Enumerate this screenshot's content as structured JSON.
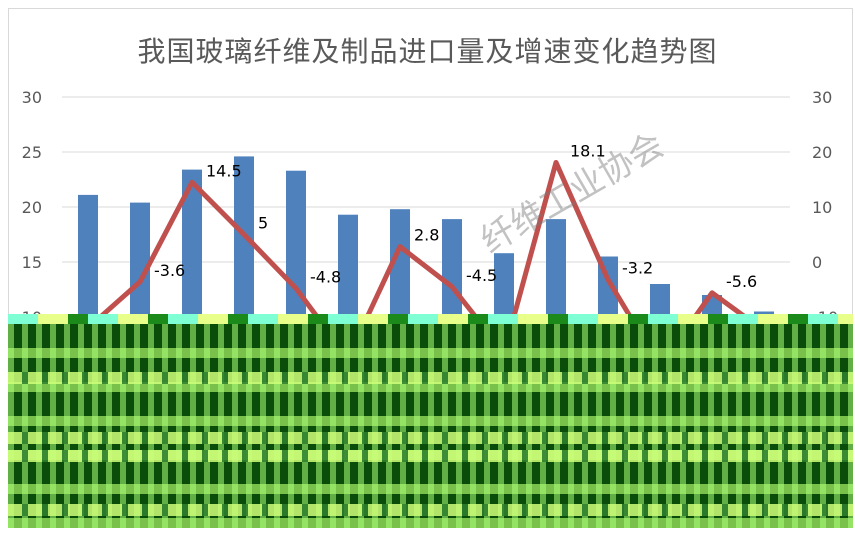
{
  "chart_data": {
    "type": "bar+line",
    "title": "我国玻璃纤维及制品进口量及增速变化趋势图",
    "left_axis": {
      "ticks": [
        "30",
        "25",
        "20",
        "15",
        "10"
      ],
      "ylim": [
        10,
        30
      ]
    },
    "right_axis": {
      "ticks": [
        "30",
        "20",
        "10",
        "0",
        "-10"
      ],
      "ylim": [
        -10,
        30
      ]
    },
    "categories": [
      "",
      "",
      "",
      "",
      "",
      "",
      "",
      "",
      "",
      "",
      "",
      "",
      "",
      ""
    ],
    "series": [
      {
        "type": "bar",
        "axis": "left",
        "color": "#4f81bd",
        "values": [
          21.1,
          20.4,
          23.4,
          24.6,
          23.3,
          19.3,
          19.8,
          18.9,
          15.8,
          18.9,
          15.5,
          13.0,
          12.0,
          10.5
        ]
      },
      {
        "type": "line",
        "axis": "right",
        "color": "#c0504d",
        "values": [
          -12.0,
          -3.6,
          14.5,
          5.0,
          -4.8,
          -17.5,
          2.8,
          -4.5,
          -16.5,
          18.1,
          -3.2,
          -19.0,
          -5.6,
          -12.5
        ]
      }
    ],
    "data_labels": [
      {
        "index": 1,
        "text": "-3.6"
      },
      {
        "index": 2,
        "text": "14.5"
      },
      {
        "index": 3,
        "text": "5"
      },
      {
        "index": 4,
        "text": "-4.8"
      },
      {
        "index": 6,
        "text": "2.8"
      },
      {
        "index": 7,
        "text": "-4.5"
      },
      {
        "index": 9,
        "text": "18.1"
      },
      {
        "index": 10,
        "text": "-3.2"
      },
      {
        "index": 12,
        "text": "-5.6"
      }
    ],
    "grid": true,
    "legend": "none"
  },
  "watermark": "纤维工业协会"
}
